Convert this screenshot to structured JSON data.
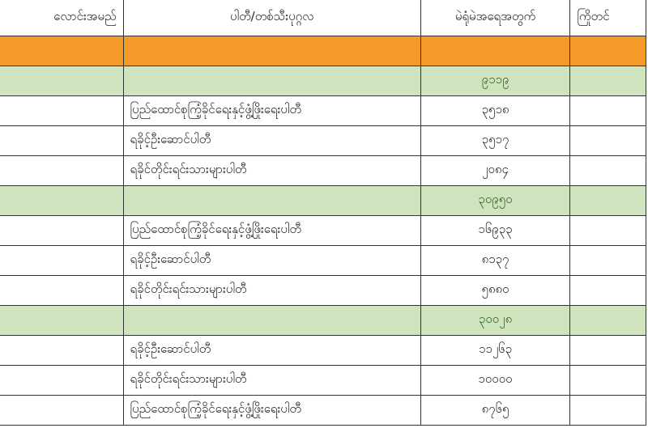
{
  "table": {
    "headers": [
      "လောင်းအမည်",
      "ပါတီ/တစ်သီးပုဂ္ဂလ",
      "မဲရုံမဲအရေအတွက်",
      "ကြိုတင်"
    ],
    "colors": {
      "section": "#f39a28",
      "subtotal": "#cfe3be"
    },
    "groups": [
      {
        "total": "၉၁၁၉",
        "rows": [
          {
            "party": "ပြည်ထောင်စုကြံ့ခိုင်ရေးနှင့်ဖွံ့ဖြိုးရေးပါတီ",
            "votes": "၃၅၁၈"
          },
          {
            "party": "ရခိုင့်ဦးဆောင်ပါတီ",
            "votes": "၃၅၁၇"
          },
          {
            "party": "ရခိုင်တိုင်းရင်းသားများပါတီ",
            "votes": "၂၀၈၄"
          }
        ]
      },
      {
        "total": "၃၀၉၅၀",
        "rows": [
          {
            "party": "ပြည်ထောင်စုကြံ့ခိုင်ရေးနှင့်ဖွံ့ဖြိုးရေးပါတီ",
            "votes": "၁၆၉၃၃"
          },
          {
            "party": "ရခိုင့်ဦးဆောင်ပါတီ",
            "votes": "၈၁၃၇"
          },
          {
            "party": "ရခိုင်တိုင်းရင်းသားများပါတီ",
            "votes": "၅၈၈၀"
          }
        ]
      },
      {
        "total": "၃၀၀၂၈",
        "rows": [
          {
            "party": "ရခိုင့်ဦးဆောင်ပါတီ",
            "votes": "၁၁၂၆၃"
          },
          {
            "party": "ရခိုင်တိုင်းရင်းသားများပါတီ",
            "votes": "၁၀၀၀၀"
          },
          {
            "party": "ပြည်ထောင်စုကြံ့ခိုင်ရေးနှင့်ဖွံ့ဖြိုးရေးပါတီ",
            "votes": "၈၇၆၅"
          }
        ]
      }
    ]
  }
}
